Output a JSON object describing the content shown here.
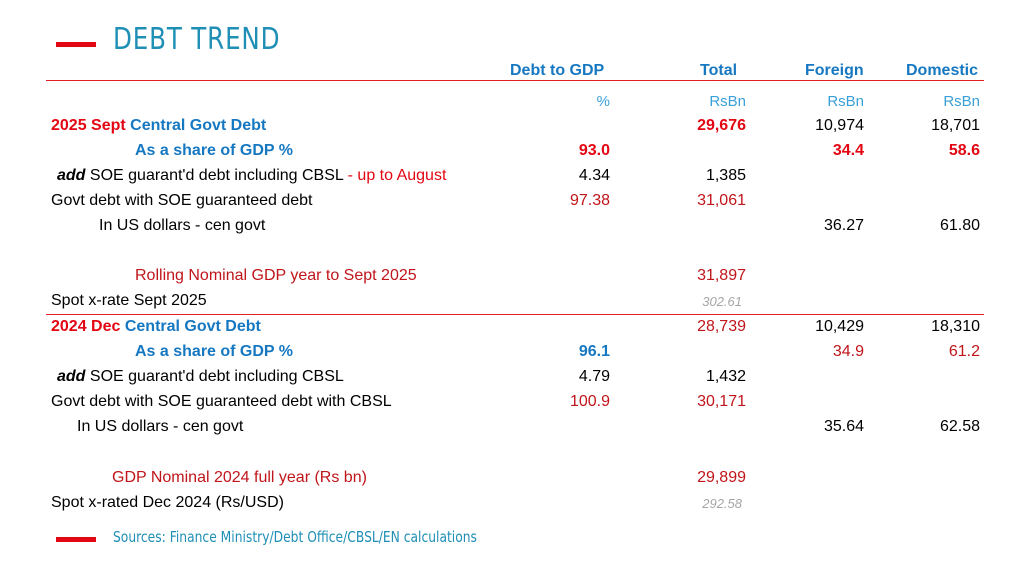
{
  "title": "DEBT TREND",
  "headers": {
    "debt_to_gdp": "Debt to GDP",
    "total": "Total",
    "foreign": "Foreign",
    "domestic": "Domestic"
  },
  "units": {
    "debt_to_gdp": "%",
    "total": "RsBn",
    "foreign": "RsBn",
    "domestic": "RsBn"
  },
  "s2025": {
    "central_prefix": "2025 Sept",
    "central_label": "Central Govt Debt",
    "central_total": "29,676",
    "central_foreign": "10,974",
    "central_domestic": "18,701",
    "share_label": "As a share of GDP %",
    "share_gdp": "93.0",
    "share_foreign": "34.4",
    "share_domestic": "58.6",
    "soe_prefix": "add",
    "soe_label": "SOE guarant'd debt including CBSL",
    "soe_suffix": "- up to August",
    "soe_gdp": "4.34",
    "soe_total": "1,385",
    "with_soe_label": "Govt debt with SOE guaranteed debt",
    "with_soe_gdp": "97.38",
    "with_soe_total": "31,061",
    "usd_label": "In US dollars - cen govt",
    "usd_foreign": "36.27",
    "usd_domestic": "61.80",
    "gdp_label": "Rolling Nominal GDP year to Sept 2025",
    "gdp_total": "31,897",
    "fx_label": "Spot x-rate Sept 2025",
    "fx_total": "302.61"
  },
  "s2024": {
    "central_prefix": "2024 Dec",
    "central_label": "Central Govt Debt",
    "central_total": "28,739",
    "central_foreign": "10,429",
    "central_domestic": "18,310",
    "share_label": "As a share of GDP %",
    "share_gdp": "96.1",
    "share_foreign": "34.9",
    "share_domestic": "61.2",
    "soe_prefix": "add",
    "soe_label": "SOE guarant'd debt including CBSL",
    "soe_gdp": "4.79",
    "soe_total": "1,432",
    "with_soe_label": "Govt debt with SOE guaranteed debt with CBSL",
    "with_soe_gdp": "100.9",
    "with_soe_total": "30,171",
    "usd_label": "In US dollars - cen govt",
    "usd_foreign": "35.64",
    "usd_domestic": "62.58",
    "gdp_label": "GDP Nominal 2024 full year (Rs bn)",
    "gdp_total": "29,899",
    "fx_label": "Spot x-rated Dec 2024 (Rs/USD)",
    "fx_total": "292.58"
  },
  "sources": "Sources: Finance Ministry/Debt Office/CBSL/EN calculations"
}
